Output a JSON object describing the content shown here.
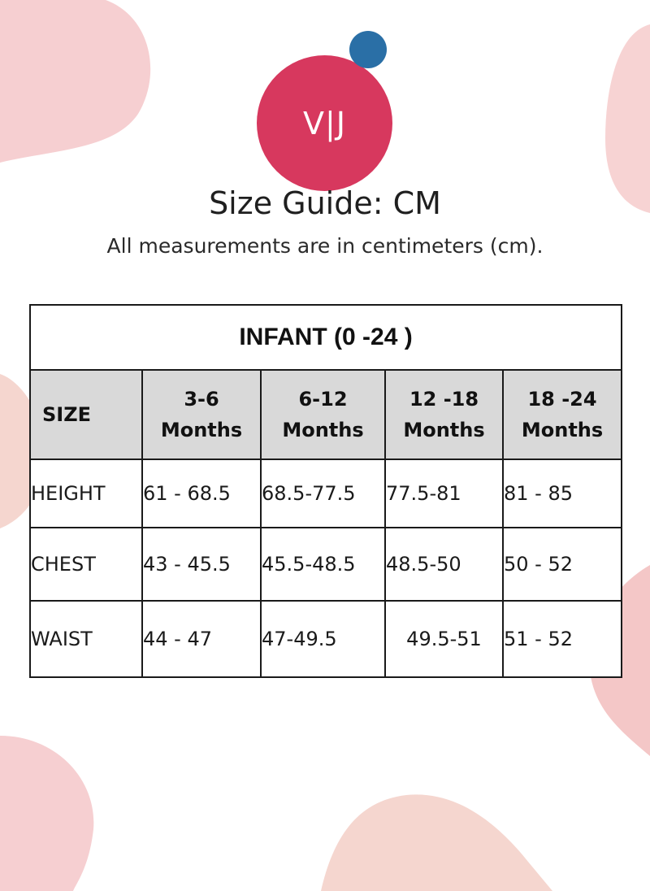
{
  "brand": {
    "logo_text": "V|J"
  },
  "colors": {
    "logo_red": "#d7385e",
    "logo_blue": "#2a6fa6",
    "blob_pink": "#f6cfd1",
    "blob_peach": "#f5d6cf",
    "header_gray": "#d9d9d9"
  },
  "heading": {
    "title": "Size Guide: CM",
    "subtitle": "All measurements are in centimeters (cm)."
  },
  "table": {
    "caption": "INFANT (0 -24 )",
    "columns": [
      {
        "line1": "SIZE",
        "line2": ""
      },
      {
        "line1": "3-6",
        "line2": "Months"
      },
      {
        "line1": "6-12",
        "line2": "Months"
      },
      {
        "line1": "12 -18",
        "line2": "Months"
      },
      {
        "line1": "18 -24",
        "line2": "Months"
      }
    ],
    "rows": [
      {
        "label": "HEIGHT",
        "values": [
          "61 - 68.5",
          "68.5-77.5",
          "77.5-81",
          "81 - 85"
        ]
      },
      {
        "label": "CHEST",
        "values": [
          "43 - 45.5",
          "45.5-48.5",
          "48.5-50",
          "50 - 52"
        ]
      },
      {
        "label": "WAIST",
        "values": [
          "44 - 47",
          "47-49.5",
          "49.5-51",
          "51 - 52"
        ]
      }
    ]
  }
}
